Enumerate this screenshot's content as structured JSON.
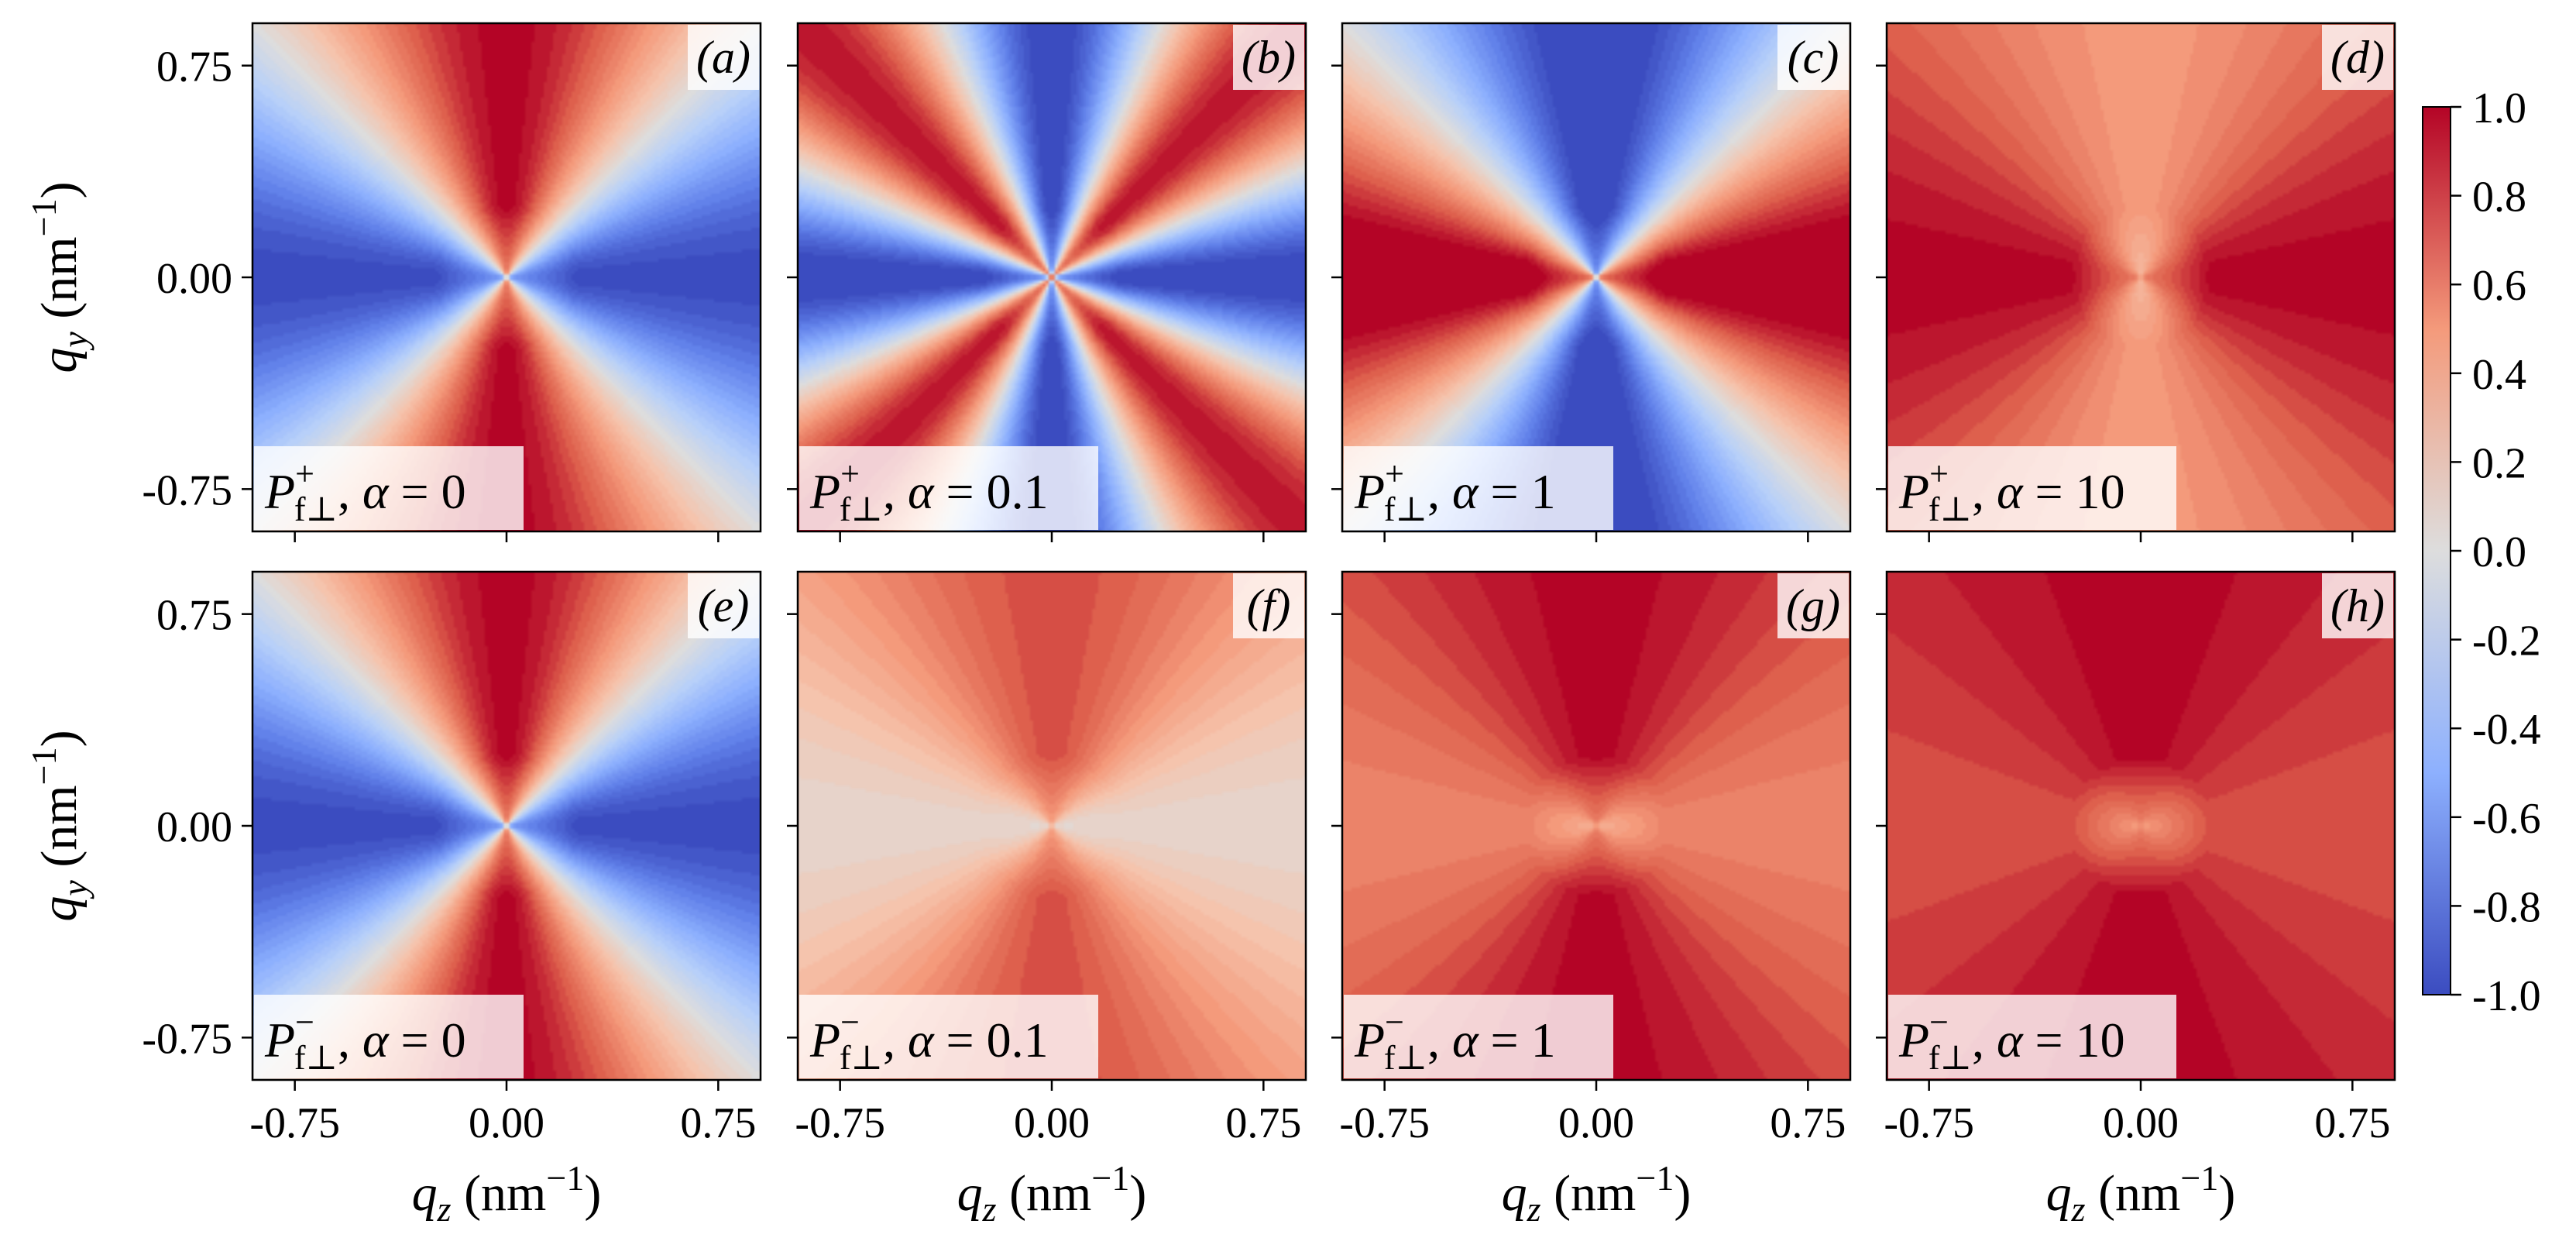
{
  "chart_data": {
    "type": "heatmap",
    "layout": "2 rows x 4 columns of small-multiple maps sharing one colorbar",
    "colormap": "coolwarm",
    "colors": {
      "low": "#3b4cc0",
      "mid": "#dddddd",
      "high": "#b40426"
    },
    "x_axis": {
      "label_var": "q",
      "label_sub": "z",
      "label_unit": "(nm",
      "label_sup": "−1",
      "label_close": ")",
      "range": [
        -0.9,
        0.9
      ],
      "ticks": [
        -0.75,
        0.0,
        0.75
      ],
      "tick_labels": [
        "-0.75",
        "0.00",
        "0.75"
      ]
    },
    "y_axis": {
      "label_var": "q",
      "label_sub": "y",
      "label_unit": "(nm",
      "label_sup": "−1",
      "label_close": ")",
      "range": [
        -0.9,
        0.9
      ],
      "ticks": [
        0.75,
        0.0,
        -0.75
      ],
      "tick_labels": [
        "0.75",
        "0.00",
        "-0.75"
      ]
    },
    "colorbar": {
      "range": [
        -1.0,
        1.0
      ],
      "ticks": [
        1.0,
        0.8,
        0.6,
        0.4,
        0.2,
        0.0,
        -0.2,
        -0.4,
        -0.6,
        -0.8,
        -1.0
      ],
      "tick_labels": [
        "1.0",
        "0.8",
        "0.6",
        "0.4",
        "0.2",
        "0.0",
        "-0.2",
        "-0.4",
        "-0.6",
        "-0.8",
        "-1.0"
      ]
    },
    "panels": [
      {
        "letter": "(a)",
        "sign": "+",
        "alpha": "0",
        "amp": 1.0,
        "cos_freq": 2,
        "offset": 0.0
      },
      {
        "letter": "(b)",
        "sign": "+",
        "alpha": "0.1",
        "amp": 1.0,
        "cos_freq": 4,
        "offset": -0.05
      },
      {
        "letter": "(c)",
        "sign": "+",
        "alpha": "1",
        "amp": 1.1,
        "cos_freq": 2,
        "offset": 0.0,
        "invert": true
      },
      {
        "letter": "(d)",
        "sign": "+",
        "alpha": "10",
        "amp": 0.25,
        "cos_freq": 2,
        "offset": 0.75,
        "invert": true
      },
      {
        "letter": "(e)",
        "sign": "−",
        "alpha": "0",
        "amp": 1.0,
        "cos_freq": 2,
        "offset": 0.0
      },
      {
        "letter": "(f)",
        "sign": "−",
        "alpha": "0.1",
        "amp": 0.35,
        "cos_freq": 2,
        "offset": 0.45
      },
      {
        "letter": "(g)",
        "sign": "−",
        "alpha": "1",
        "amp": 0.2,
        "cos_freq": 2,
        "offset": 0.8
      },
      {
        "letter": "(h)",
        "sign": "−",
        "alpha": "10",
        "amp": 0.1,
        "cos_freq": 2,
        "offset": 0.9
      }
    ],
    "panel_label": {
      "var": "P",
      "sub": "f⊥",
      "greek": "α",
      "eq": "="
    }
  }
}
